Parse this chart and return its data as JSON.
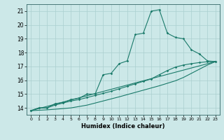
{
  "xlabel": "Humidex (Indice chaleur)",
  "background_color": "#cce8e8",
  "line_color": "#1a7a6a",
  "grid_color": "#b0d4d4",
  "xlim": [
    -0.5,
    23.5
  ],
  "ylim": [
    13.5,
    21.5
  ],
  "xticks": [
    0,
    1,
    2,
    3,
    4,
    5,
    6,
    7,
    8,
    9,
    10,
    11,
    12,
    13,
    14,
    15,
    16,
    17,
    18,
    19,
    20,
    21,
    22,
    23
  ],
  "yticks": [
    14,
    15,
    16,
    17,
    18,
    19,
    20,
    21
  ],
  "curve1_x": [
    0,
    1,
    2,
    3,
    4,
    5,
    6,
    7,
    8,
    9,
    10,
    11,
    12,
    13,
    14,
    15,
    16,
    17,
    18,
    19,
    20,
    21,
    22,
    23
  ],
  "curve1_y": [
    13.8,
    14.0,
    14.0,
    14.3,
    14.4,
    14.6,
    14.7,
    15.0,
    15.0,
    16.4,
    16.5,
    17.2,
    17.4,
    19.3,
    19.4,
    21.0,
    21.1,
    19.4,
    19.1,
    19.0,
    18.2,
    17.9,
    17.4,
    17.35
  ],
  "curve2_x": [
    0,
    1,
    2,
    3,
    4,
    5,
    6,
    7,
    8,
    9,
    10,
    11,
    12,
    13,
    14,
    15,
    16,
    17,
    18,
    19,
    20,
    21,
    22,
    23
  ],
  "curve2_y": [
    13.8,
    14.0,
    14.0,
    14.2,
    14.35,
    14.5,
    14.6,
    14.75,
    14.9,
    15.05,
    15.2,
    15.38,
    15.56,
    15.74,
    15.92,
    16.1,
    16.4,
    16.7,
    16.95,
    17.1,
    17.2,
    17.28,
    17.34,
    17.35
  ],
  "curve3_x": [
    0,
    23
  ],
  "curve3_y": [
    13.8,
    17.35
  ],
  "curve4_x": [
    0,
    1,
    2,
    3,
    4,
    5,
    6,
    7,
    8,
    9,
    10,
    11,
    12,
    13,
    14,
    15,
    16,
    17,
    18,
    19,
    20,
    21,
    22,
    23
  ],
  "curve4_y": [
    13.8,
    13.83,
    13.86,
    13.9,
    13.95,
    14.0,
    14.1,
    14.2,
    14.35,
    14.5,
    14.65,
    14.8,
    14.96,
    15.12,
    15.28,
    15.44,
    15.6,
    15.78,
    15.96,
    16.2,
    16.5,
    16.8,
    17.1,
    17.35
  ]
}
